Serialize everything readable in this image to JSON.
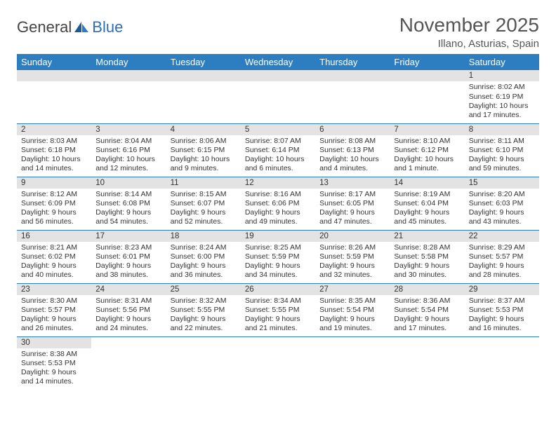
{
  "brand": {
    "part1": "General",
    "part2": "Blue"
  },
  "title": "November 2025",
  "location": "Illano, Asturias, Spain",
  "colors": {
    "header_bg": "#2d7ec0",
    "header_text": "#ffffff",
    "daynum_bg": "#e3e3e3",
    "cell_border": "#2d7ec0",
    "text": "#333333",
    "title_text": "#555555"
  },
  "typography": {
    "title_fontsize": 28,
    "location_fontsize": 15,
    "weekday_fontsize": 13,
    "cell_fontsize": 10.5,
    "daynum_fontsize": 11.5
  },
  "weekdays": [
    "Sunday",
    "Monday",
    "Tuesday",
    "Wednesday",
    "Thursday",
    "Friday",
    "Saturday"
  ],
  "weeks": [
    [
      null,
      null,
      null,
      null,
      null,
      null,
      {
        "n": "1",
        "sunrise": "Sunrise: 8:02 AM",
        "sunset": "Sunset: 6:19 PM",
        "daylight": "Daylight: 10 hours and 17 minutes."
      }
    ],
    [
      {
        "n": "2",
        "sunrise": "Sunrise: 8:03 AM",
        "sunset": "Sunset: 6:18 PM",
        "daylight": "Daylight: 10 hours and 14 minutes."
      },
      {
        "n": "3",
        "sunrise": "Sunrise: 8:04 AM",
        "sunset": "Sunset: 6:16 PM",
        "daylight": "Daylight: 10 hours and 12 minutes."
      },
      {
        "n": "4",
        "sunrise": "Sunrise: 8:06 AM",
        "sunset": "Sunset: 6:15 PM",
        "daylight": "Daylight: 10 hours and 9 minutes."
      },
      {
        "n": "5",
        "sunrise": "Sunrise: 8:07 AM",
        "sunset": "Sunset: 6:14 PM",
        "daylight": "Daylight: 10 hours and 6 minutes."
      },
      {
        "n": "6",
        "sunrise": "Sunrise: 8:08 AM",
        "sunset": "Sunset: 6:13 PM",
        "daylight": "Daylight: 10 hours and 4 minutes."
      },
      {
        "n": "7",
        "sunrise": "Sunrise: 8:10 AM",
        "sunset": "Sunset: 6:12 PM",
        "daylight": "Daylight: 10 hours and 1 minute."
      },
      {
        "n": "8",
        "sunrise": "Sunrise: 8:11 AM",
        "sunset": "Sunset: 6:10 PM",
        "daylight": "Daylight: 9 hours and 59 minutes."
      }
    ],
    [
      {
        "n": "9",
        "sunrise": "Sunrise: 8:12 AM",
        "sunset": "Sunset: 6:09 PM",
        "daylight": "Daylight: 9 hours and 56 minutes."
      },
      {
        "n": "10",
        "sunrise": "Sunrise: 8:14 AM",
        "sunset": "Sunset: 6:08 PM",
        "daylight": "Daylight: 9 hours and 54 minutes."
      },
      {
        "n": "11",
        "sunrise": "Sunrise: 8:15 AM",
        "sunset": "Sunset: 6:07 PM",
        "daylight": "Daylight: 9 hours and 52 minutes."
      },
      {
        "n": "12",
        "sunrise": "Sunrise: 8:16 AM",
        "sunset": "Sunset: 6:06 PM",
        "daylight": "Daylight: 9 hours and 49 minutes."
      },
      {
        "n": "13",
        "sunrise": "Sunrise: 8:17 AM",
        "sunset": "Sunset: 6:05 PM",
        "daylight": "Daylight: 9 hours and 47 minutes."
      },
      {
        "n": "14",
        "sunrise": "Sunrise: 8:19 AM",
        "sunset": "Sunset: 6:04 PM",
        "daylight": "Daylight: 9 hours and 45 minutes."
      },
      {
        "n": "15",
        "sunrise": "Sunrise: 8:20 AM",
        "sunset": "Sunset: 6:03 PM",
        "daylight": "Daylight: 9 hours and 43 minutes."
      }
    ],
    [
      {
        "n": "16",
        "sunrise": "Sunrise: 8:21 AM",
        "sunset": "Sunset: 6:02 PM",
        "daylight": "Daylight: 9 hours and 40 minutes."
      },
      {
        "n": "17",
        "sunrise": "Sunrise: 8:23 AM",
        "sunset": "Sunset: 6:01 PM",
        "daylight": "Daylight: 9 hours and 38 minutes."
      },
      {
        "n": "18",
        "sunrise": "Sunrise: 8:24 AM",
        "sunset": "Sunset: 6:00 PM",
        "daylight": "Daylight: 9 hours and 36 minutes."
      },
      {
        "n": "19",
        "sunrise": "Sunrise: 8:25 AM",
        "sunset": "Sunset: 5:59 PM",
        "daylight": "Daylight: 9 hours and 34 minutes."
      },
      {
        "n": "20",
        "sunrise": "Sunrise: 8:26 AM",
        "sunset": "Sunset: 5:59 PM",
        "daylight": "Daylight: 9 hours and 32 minutes."
      },
      {
        "n": "21",
        "sunrise": "Sunrise: 8:28 AM",
        "sunset": "Sunset: 5:58 PM",
        "daylight": "Daylight: 9 hours and 30 minutes."
      },
      {
        "n": "22",
        "sunrise": "Sunrise: 8:29 AM",
        "sunset": "Sunset: 5:57 PM",
        "daylight": "Daylight: 9 hours and 28 minutes."
      }
    ],
    [
      {
        "n": "23",
        "sunrise": "Sunrise: 8:30 AM",
        "sunset": "Sunset: 5:57 PM",
        "daylight": "Daylight: 9 hours and 26 minutes."
      },
      {
        "n": "24",
        "sunrise": "Sunrise: 8:31 AM",
        "sunset": "Sunset: 5:56 PM",
        "daylight": "Daylight: 9 hours and 24 minutes."
      },
      {
        "n": "25",
        "sunrise": "Sunrise: 8:32 AM",
        "sunset": "Sunset: 5:55 PM",
        "daylight": "Daylight: 9 hours and 22 minutes."
      },
      {
        "n": "26",
        "sunrise": "Sunrise: 8:34 AM",
        "sunset": "Sunset: 5:55 PM",
        "daylight": "Daylight: 9 hours and 21 minutes."
      },
      {
        "n": "27",
        "sunrise": "Sunrise: 8:35 AM",
        "sunset": "Sunset: 5:54 PM",
        "daylight": "Daylight: 9 hours and 19 minutes."
      },
      {
        "n": "28",
        "sunrise": "Sunrise: 8:36 AM",
        "sunset": "Sunset: 5:54 PM",
        "daylight": "Daylight: 9 hours and 17 minutes."
      },
      {
        "n": "29",
        "sunrise": "Sunrise: 8:37 AM",
        "sunset": "Sunset: 5:53 PM",
        "daylight": "Daylight: 9 hours and 16 minutes."
      }
    ],
    [
      {
        "n": "30",
        "sunrise": "Sunrise: 8:38 AM",
        "sunset": "Sunset: 5:53 PM",
        "daylight": "Daylight: 9 hours and 14 minutes."
      },
      null,
      null,
      null,
      null,
      null,
      null
    ]
  ]
}
